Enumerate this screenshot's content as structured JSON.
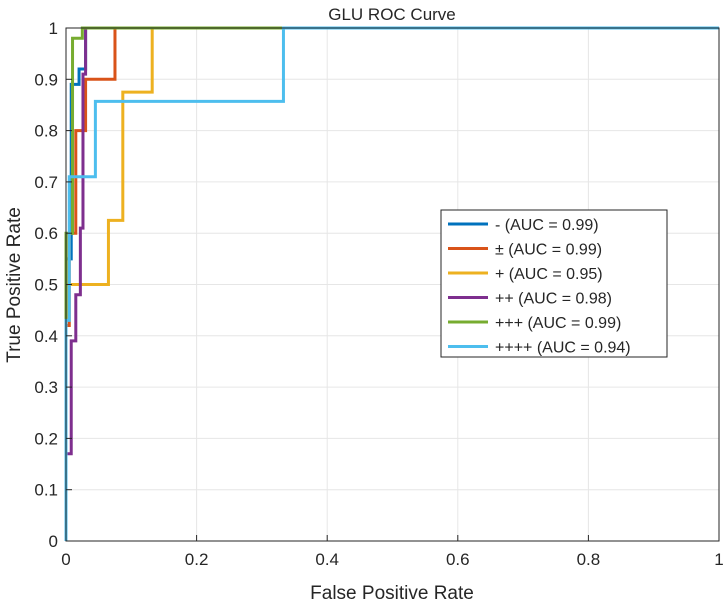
{
  "chart_data": {
    "type": "line",
    "title": "GLU ROC Curve",
    "xlabel": "False Positive Rate",
    "ylabel": "True Positive Rate",
    "xlim": [
      0,
      1
    ],
    "ylim": [
      0,
      1
    ],
    "grid": true,
    "legend_position": "right-middle",
    "xticks": [
      0,
      0.2,
      0.4,
      0.6,
      0.8,
      1
    ],
    "xtick_labels": [
      "0",
      "0.2",
      "0.4",
      "0.6",
      "0.8",
      "1"
    ],
    "yticks": [
      0,
      0.1,
      0.2,
      0.3,
      0.4,
      0.5,
      0.6,
      0.7,
      0.8,
      0.9,
      1
    ],
    "ytick_labels": [
      "0",
      "0.1",
      "0.2",
      "0.3",
      "0.4",
      "0.5",
      "0.6",
      "0.7",
      "0.8",
      "0.9",
      "1"
    ],
    "series": [
      {
        "name": "- (AUC = 0.99)",
        "color": "#0072BD",
        "points": [
          [
            0,
            0
          ],
          [
            0,
            0.55
          ],
          [
            0.008,
            0.55
          ],
          [
            0.008,
            0.89
          ],
          [
            0.02,
            0.89
          ],
          [
            0.02,
            0.92
          ],
          [
            0.03,
            0.92
          ],
          [
            0.03,
            1
          ],
          [
            1,
            1
          ]
        ]
      },
      {
        "name": "± (AUC = 0.99)",
        "color": "#D95319",
        "points": [
          [
            0,
            0
          ],
          [
            0,
            0.42
          ],
          [
            0.005,
            0.42
          ],
          [
            0.005,
            0.6
          ],
          [
            0.015,
            0.6
          ],
          [
            0.015,
            0.8
          ],
          [
            0.03,
            0.8
          ],
          [
            0.03,
            0.9
          ],
          [
            0.075,
            0.9
          ],
          [
            0.075,
            1
          ],
          [
            1,
            1
          ]
        ]
      },
      {
        "name": "+ (AUC = 0.95)",
        "color": "#EDB120",
        "points": [
          [
            0,
            0
          ],
          [
            0,
            0.5
          ],
          [
            0.065,
            0.5
          ],
          [
            0.065,
            0.625
          ],
          [
            0.087,
            0.625
          ],
          [
            0.087,
            0.875
          ],
          [
            0.132,
            0.875
          ],
          [
            0.132,
            1
          ],
          [
            1,
            1
          ]
        ]
      },
      {
        "name": "++ (AUC = 0.98)",
        "color": "#7E2F8E",
        "points": [
          [
            0,
            0
          ],
          [
            0,
            0.17
          ],
          [
            0.008,
            0.17
          ],
          [
            0.008,
            0.39
          ],
          [
            0.015,
            0.39
          ],
          [
            0.015,
            0.48
          ],
          [
            0.022,
            0.48
          ],
          [
            0.022,
            0.61
          ],
          [
            0.026,
            0.61
          ],
          [
            0.026,
            0.91
          ],
          [
            0.03,
            0.91
          ],
          [
            0.03,
            1
          ],
          [
            1,
            1
          ]
        ]
      },
      {
        "name": "+++ (AUC = 0.99)",
        "color": "#77AC30",
        "points": [
          [
            0,
            0
          ],
          [
            0,
            0.6
          ],
          [
            0.01,
            0.6
          ],
          [
            0.01,
            0.98
          ],
          [
            0.025,
            0.98
          ],
          [
            0.025,
            1
          ],
          [
            1,
            1
          ]
        ]
      },
      {
        "name": "++++ (AUC = 0.94)",
        "color": "#4DBEEE",
        "points": [
          [
            0,
            0
          ],
          [
            0,
            0.43
          ],
          [
            0.005,
            0.43
          ],
          [
            0.005,
            0.71
          ],
          [
            0.045,
            0.71
          ],
          [
            0.045,
            0.857
          ],
          [
            0.333,
            0.857
          ],
          [
            0.333,
            1
          ],
          [
            1,
            1
          ]
        ]
      }
    ]
  }
}
